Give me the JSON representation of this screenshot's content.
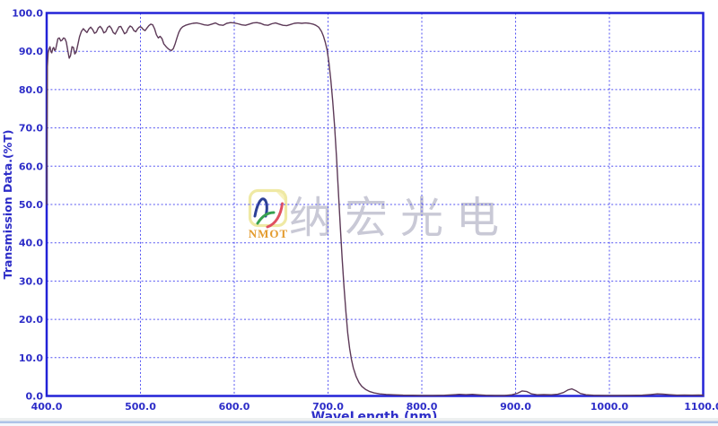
{
  "chart_data": {
    "type": "line",
    "title": "",
    "xlabel": "WaveLength.(nm)",
    "ylabel": "Transmission Data.(%T)",
    "xlim": [
      400,
      1100
    ],
    "ylim": [
      0,
      100
    ],
    "grid": "dotted",
    "legend": "none",
    "xticks": {
      "values": [
        400,
        500,
        600,
        700,
        800,
        900,
        1000,
        1100
      ],
      "labels": [
        "400.0",
        "500.0",
        "600.0",
        "700.0",
        "800.0",
        "900.0",
        "1000.0",
        "1100.0"
      ]
    },
    "yticks": {
      "values": [
        0,
        10,
        20,
        30,
        40,
        50,
        60,
        70,
        80,
        90,
        100
      ],
      "labels": [
        "0.0",
        "10.0",
        "20.0",
        "30.0",
        "40.0",
        "50.0",
        "60.0",
        "70.0",
        "80.0",
        "90.0",
        "100.0"
      ]
    },
    "colors": {
      "frame": "#2323d7",
      "grid": "#5252f2",
      "labels": "#2d2dc8",
      "curve": "#5d3a58"
    },
    "series": [
      {
        "name": "transmission",
        "points": [
          [
            400,
            50
          ],
          [
            400.8,
            86
          ],
          [
            401.5,
            89.5
          ],
          [
            402.5,
            90.6
          ],
          [
            403.5,
            91.2
          ],
          [
            404.5,
            89.9
          ],
          [
            405.5,
            89.6
          ],
          [
            406.5,
            90.7
          ],
          [
            407.5,
            91.0
          ],
          [
            408.5,
            90.2
          ],
          [
            409.5,
            90.4
          ],
          [
            410.5,
            91.6
          ],
          [
            412,
            93.3
          ],
          [
            413.5,
            93.5
          ],
          [
            415,
            92.7
          ],
          [
            416.5,
            92.9
          ],
          [
            418,
            93.5
          ],
          [
            419.5,
            93.3
          ],
          [
            421,
            92.4
          ],
          [
            422.5,
            90.2
          ],
          [
            424,
            88.2
          ],
          [
            425.5,
            88.9
          ],
          [
            427,
            91.2
          ],
          [
            428.5,
            91.0
          ],
          [
            430,
            89.3
          ],
          [
            431.5,
            89.8
          ],
          [
            433,
            91.5
          ],
          [
            435,
            93.8
          ],
          [
            437,
            95.2
          ],
          [
            439,
            95.9
          ],
          [
            441,
            95.4
          ],
          [
            443,
            94.9
          ],
          [
            445,
            95.8
          ],
          [
            447,
            96.3
          ],
          [
            449,
            95.7
          ],
          [
            451,
            94.7
          ],
          [
            453,
            95.0
          ],
          [
            455,
            96.1
          ],
          [
            457,
            96.5
          ],
          [
            459,
            95.9
          ],
          [
            461,
            94.8
          ],
          [
            463,
            95.1
          ],
          [
            465,
            96.2
          ],
          [
            467,
            96.6
          ],
          [
            469,
            96.0
          ],
          [
            471,
            94.9
          ],
          [
            473,
            94.5
          ],
          [
            475,
            95.4
          ],
          [
            477,
            96.4
          ],
          [
            479,
            96.5
          ],
          [
            481,
            95.6
          ],
          [
            483,
            94.6
          ],
          [
            485,
            94.9
          ],
          [
            487,
            96.0
          ],
          [
            489,
            96.6
          ],
          [
            491,
            96.3
          ],
          [
            493,
            95.4
          ],
          [
            495,
            95.1
          ],
          [
            497,
            95.9
          ],
          [
            499,
            96.4
          ],
          [
            501,
            96.3
          ],
          [
            503,
            95.7
          ],
          [
            505,
            95.4
          ],
          [
            507,
            96.1
          ],
          [
            509,
            96.7
          ],
          [
            511,
            97.1
          ],
          [
            513,
            96.9
          ],
          [
            515,
            95.9
          ],
          [
            517,
            94.3
          ],
          [
            519,
            93.5
          ],
          [
            521,
            93.9
          ],
          [
            523,
            93.3
          ],
          [
            525,
            91.9
          ],
          [
            527,
            91.3
          ],
          [
            529,
            90.8
          ],
          [
            531,
            90.4
          ],
          [
            533,
            90.2
          ],
          [
            535,
            90.7
          ],
          [
            537,
            92.0
          ],
          [
            539,
            93.6
          ],
          [
            541,
            95.0
          ],
          [
            543,
            95.9
          ],
          [
            545,
            96.4
          ],
          [
            548,
            96.8
          ],
          [
            552,
            97.1
          ],
          [
            556,
            97.3
          ],
          [
            560,
            97.4
          ],
          [
            564,
            97.2
          ],
          [
            568,
            96.9
          ],
          [
            572,
            96.8
          ],
          [
            576,
            97.1
          ],
          [
            580,
            97.4
          ],
          [
            584,
            96.9
          ],
          [
            588,
            96.8
          ],
          [
            592,
            97.3
          ],
          [
            596,
            97.5
          ],
          [
            600,
            97.4
          ],
          [
            604,
            97.2
          ],
          [
            608,
            96.9
          ],
          [
            612,
            96.8
          ],
          [
            616,
            97.1
          ],
          [
            620,
            97.4
          ],
          [
            624,
            97.5
          ],
          [
            628,
            97.3
          ],
          [
            632,
            96.9
          ],
          [
            636,
            96.8
          ],
          [
            640,
            97.2
          ],
          [
            644,
            97.4
          ],
          [
            648,
            97.1
          ],
          [
            652,
            96.8
          ],
          [
            656,
            96.7
          ],
          [
            660,
            97.0
          ],
          [
            664,
            97.3
          ],
          [
            668,
            97.4
          ],
          [
            672,
            97.3
          ],
          [
            676,
            97.4
          ],
          [
            680,
            97.3
          ],
          [
            684,
            97.1
          ],
          [
            687,
            96.8
          ],
          [
            690,
            96.3
          ],
          [
            693,
            95.2
          ],
          [
            695,
            94.0
          ],
          [
            697,
            92.4
          ],
          [
            699,
            90.3
          ],
          [
            701,
            87.0
          ],
          [
            703,
            82.5
          ],
          [
            705,
            77.0
          ],
          [
            707,
            70.5
          ],
          [
            709,
            62.5
          ],
          [
            711,
            53.5
          ],
          [
            713,
            44.5
          ],
          [
            715,
            36.0
          ],
          [
            717,
            28.5
          ],
          [
            719,
            22.0
          ],
          [
            721,
            16.5
          ],
          [
            723,
            12.5
          ],
          [
            725,
            9.5
          ],
          [
            727,
            7.3
          ],
          [
            730,
            5.0
          ],
          [
            733,
            3.5
          ],
          [
            736,
            2.5
          ],
          [
            740,
            1.7
          ],
          [
            744,
            1.2
          ],
          [
            749,
            0.8
          ],
          [
            755,
            0.55
          ],
          [
            762,
            0.4
          ],
          [
            770,
            0.3
          ],
          [
            780,
            0.22
          ],
          [
            790,
            0.18
          ],
          [
            800,
            0.15
          ],
          [
            812,
            0.15
          ],
          [
            824,
            0.18
          ],
          [
            833,
            0.3
          ],
          [
            840,
            0.42
          ],
          [
            847,
            0.32
          ],
          [
            854,
            0.42
          ],
          [
            860,
            0.3
          ],
          [
            868,
            0.18
          ],
          [
            878,
            0.14
          ],
          [
            888,
            0.15
          ],
          [
            896,
            0.3
          ],
          [
            902,
            0.7
          ],
          [
            907,
            1.3
          ],
          [
            912,
            1.15
          ],
          [
            917,
            0.55
          ],
          [
            923,
            0.3
          ],
          [
            930,
            0.35
          ],
          [
            938,
            0.3
          ],
          [
            945,
            0.45
          ],
          [
            951,
            0.9
          ],
          [
            956,
            1.6
          ],
          [
            960,
            1.85
          ],
          [
            964,
            1.4
          ],
          [
            969,
            0.65
          ],
          [
            975,
            0.3
          ],
          [
            983,
            0.18
          ],
          [
            995,
            0.14
          ],
          [
            1008,
            0.14
          ],
          [
            1022,
            0.16
          ],
          [
            1035,
            0.22
          ],
          [
            1044,
            0.38
          ],
          [
            1051,
            0.55
          ],
          [
            1057,
            0.48
          ],
          [
            1064,
            0.32
          ],
          [
            1072,
            0.22
          ],
          [
            1080,
            0.26
          ],
          [
            1088,
            0.22
          ],
          [
            1095,
            0.24
          ],
          [
            1100,
            0.22
          ]
        ]
      }
    ]
  },
  "watermark": {
    "logo_text": "NMOT",
    "cjk_text": "纳宏光电",
    "cjk_color": "#c9c9d6",
    "logo_text_color": "#e39b2d",
    "logo_border_color": "#efe9a4",
    "logo_arc_colors": [
      "#2b3f96",
      "#37a050",
      "#e05060"
    ]
  }
}
